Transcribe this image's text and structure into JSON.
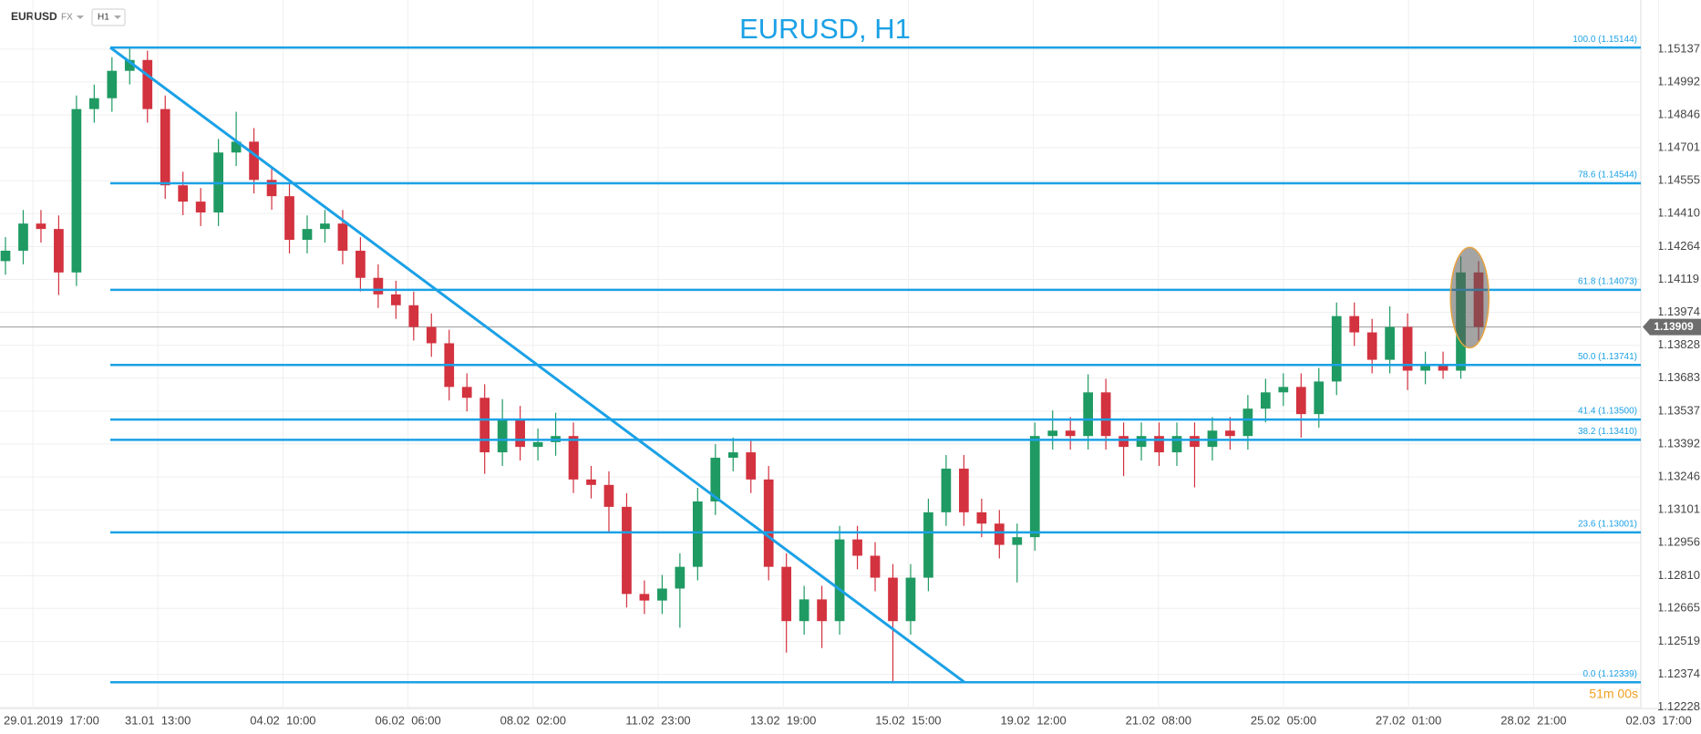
{
  "header": {
    "symbol": "EURUSD",
    "market": "FX",
    "timeframe": "H1"
  },
  "chart_data": {
    "type": "candlestick",
    "title": "EURUSD, H1",
    "xtick_labels": [
      "29.01.2019  17:00",
      "31.01  13:00",
      "04.02  10:00",
      "06.02  06:00",
      "08.02  02:00",
      "11.02  23:00",
      "13.02  19:00",
      "15.02  15:00",
      "19.02  12:00",
      "21.02  08:00",
      "25.02  05:00",
      "27.02  01:00",
      "28.02  21:00",
      "02.03  17:00"
    ],
    "open": [
      1.142,
      1.14246,
      1.14366,
      1.14342,
      1.1415,
      1.14872,
      1.1492,
      1.15041,
      1.15089,
      1.14872,
      1.14535,
      1.14463,
      1.14415,
      1.1468,
      1.14728,
      1.14559,
      1.14487,
      1.14294,
      1.14342,
      1.14366,
      1.14246,
      1.14126,
      1.14053,
      1.14005,
      1.13909,
      1.13837,
      1.13644,
      1.13596,
      1.13355,
      1.135,
      1.13379,
      1.134,
      1.13427,
      1.13235,
      1.13211,
      1.13114,
      1.12729,
      1.127,
      1.12753,
      1.12849,
      1.13138,
      1.13331,
      1.13355,
      1.13235,
      1.12849,
      1.12609,
      1.12705,
      1.12609,
      1.1297,
      1.12898,
      1.12801,
      1.12609,
      1.12801,
      1.1309,
      1.13283,
      1.1309,
      1.1304,
      1.12946,
      1.1298,
      1.13427,
      1.13451,
      1.13427,
      1.1362,
      1.13427,
      1.13379,
      1.13427,
      1.13355,
      1.13427,
      1.13379,
      1.13451,
      1.13427,
      1.13548,
      1.1362,
      1.13644,
      1.13524,
      1.13668,
      1.13957,
      1.13885,
      1.13764,
      1.13909,
      1.13716,
      1.1374,
      1.13716,
      1.1415
    ],
    "high": [
      1.14306,
      1.14426,
      1.14426,
      1.14402,
      1.14932,
      1.1498,
      1.15101,
      1.15144,
      1.1513,
      1.14932,
      1.14595,
      1.14523,
      1.1474,
      1.1486,
      1.14788,
      1.14619,
      1.14547,
      1.14402,
      1.14426,
      1.14426,
      1.14306,
      1.14186,
      1.14113,
      1.14065,
      1.13969,
      1.13897,
      1.13704,
      1.13656,
      1.1359,
      1.1356,
      1.1346,
      1.1353,
      1.13487,
      1.13295,
      1.13271,
      1.13174,
      1.12789,
      1.12813,
      1.12909,
      1.13198,
      1.13391,
      1.1342,
      1.13415,
      1.13295,
      1.12909,
      1.12765,
      1.12765,
      1.1303,
      1.1303,
      1.12958,
      1.12861,
      1.12861,
      1.1315,
      1.13343,
      1.13343,
      1.1315,
      1.131,
      1.1304,
      1.13487,
      1.1354,
      1.13511,
      1.137,
      1.1368,
      1.13487,
      1.13487,
      1.13487,
      1.13487,
      1.13487,
      1.13511,
      1.13511,
      1.13608,
      1.1368,
      1.13704,
      1.13704,
      1.13728,
      1.14017,
      1.14017,
      1.13945,
      1.14,
      1.13969,
      1.138,
      1.138,
      1.1422,
      1.142
    ],
    "low": [
      1.1414,
      1.14186,
      1.14282,
      1.1405,
      1.1409,
      1.14812,
      1.1486,
      1.14981,
      1.14812,
      1.14475,
      1.14403,
      1.14355,
      1.14355,
      1.1462,
      1.14499,
      1.14427,
      1.14234,
      1.14234,
      1.14282,
      1.14186,
      1.14066,
      1.13993,
      1.13945,
      1.13849,
      1.13777,
      1.13584,
      1.13536,
      1.1326,
      1.13295,
      1.13319,
      1.13319,
      1.1334,
      1.13175,
      1.13151,
      1.13,
      1.12669,
      1.1264,
      1.1264,
      1.1258,
      1.12789,
      1.13078,
      1.13271,
      1.13175,
      1.12789,
      1.1247,
      1.12549,
      1.1249,
      1.12549,
      1.12838,
      1.12741,
      1.12339,
      1.12549,
      1.12741,
      1.1303,
      1.1303,
      1.1298,
      1.12886,
      1.1278,
      1.1292,
      1.13367,
      1.13367,
      1.13367,
      1.13367,
      1.1325,
      1.13319,
      1.13295,
      1.13295,
      1.132,
      1.13319,
      1.13367,
      1.13367,
      1.13488,
      1.1356,
      1.1342,
      1.13464,
      1.13608,
      1.13825,
      1.13704,
      1.13704,
      1.1363,
      1.13656,
      1.1368,
      1.1368,
      1.13849
    ],
    "close": [
      1.14246,
      1.14366,
      1.14342,
      1.1415,
      1.14872,
      1.1492,
      1.15041,
      1.15089,
      1.14872,
      1.14535,
      1.14463,
      1.14415,
      1.1468,
      1.14728,
      1.14559,
      1.14487,
      1.14294,
      1.14342,
      1.14366,
      1.14246,
      1.14126,
      1.14053,
      1.14005,
      1.13909,
      1.13837,
      1.13644,
      1.13596,
      1.13355,
      1.135,
      1.13379,
      1.134,
      1.13427,
      1.13235,
      1.13211,
      1.13114,
      1.12729,
      1.127,
      1.12753,
      1.12849,
      1.13138,
      1.13331,
      1.13355,
      1.13235,
      1.12849,
      1.12609,
      1.12705,
      1.12609,
      1.1297,
      1.12898,
      1.12801,
      1.12609,
      1.12801,
      1.1309,
      1.13283,
      1.1309,
      1.1304,
      1.12946,
      1.1298,
      1.13427,
      1.13451,
      1.13427,
      1.1362,
      1.13427,
      1.13379,
      1.13427,
      1.13355,
      1.13427,
      1.13379,
      1.13451,
      1.13427,
      1.13548,
      1.1362,
      1.13644,
      1.13524,
      1.13668,
      1.13957,
      1.13885,
      1.13764,
      1.13909,
      1.13716,
      1.1374,
      1.13716,
      1.1415,
      1.13909
    ],
    "up_color": "#1f9a62",
    "down_color": "#d3323f",
    "ylim": [
      1.12223,
      1.15354
    ],
    "yticks": [
      1.15137,
      1.14992,
      1.14846,
      1.14701,
      1.14555,
      {
        "value": 1.1441,
        "label": "1.14410"
      },
      1.14264,
      1.14119,
      1.13974,
      1.13828,
      1.13683,
      1.13537,
      1.13392,
      1.13246,
      1.13101,
      1.12956,
      {
        "value": 1.1281,
        "label": "1.12810"
      },
      1.12665,
      1.12519,
      1.12374,
      1.12228
    ],
    "grid": true,
    "level_color": "#1ba1e6",
    "levels": [
      {
        "label": "100.0 (1.15144)",
        "value": 1.15144
      },
      {
        "label": "78.6 (1.14544)",
        "value": 1.14544
      },
      {
        "label": "61.8 (1.14073)",
        "value": 1.14073
      },
      {
        "label": "50.0 (1.13741)",
        "value": 1.13741
      },
      {
        "label": "41.4 (1.13500)",
        "value": 1.135
      },
      {
        "label": "38.2 (1.13410)",
        "value": 1.1341
      },
      {
        "label": "23.6 (1.13001)",
        "value": 1.13001
      },
      {
        "label": "0.0 (1.12339)",
        "value": 1.12339
      }
    ],
    "current_price": 1.13909,
    "countdown": "51m 00s"
  }
}
